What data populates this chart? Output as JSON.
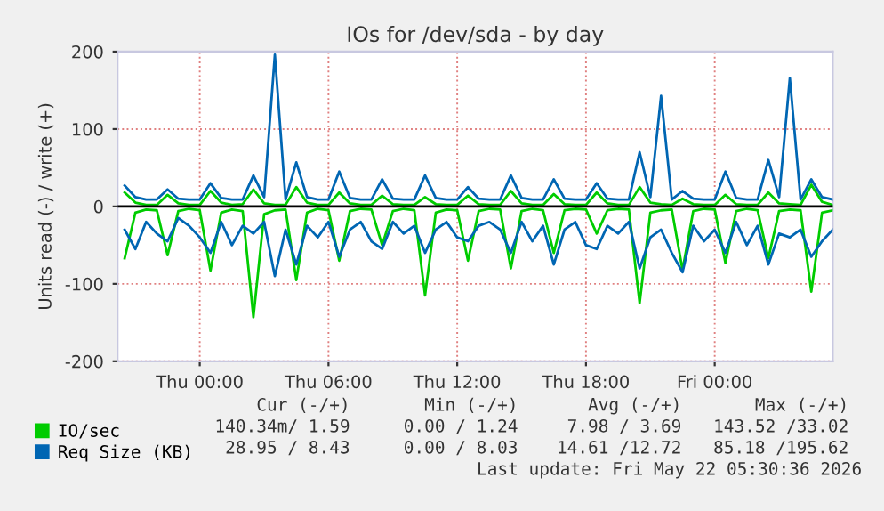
{
  "chart_data": {
    "type": "line",
    "title": "IOs for /dev/sda - by day",
    "ylabel": "Units read (-) / write (+)",
    "categories": [
      null,
      null,
      null,
      null,
      null,
      null,
      null,
      "Thu 00:00",
      null,
      null,
      null,
      null,
      null,
      null,
      null,
      null,
      null,
      null,
      null,
      "Thu 06:00",
      null,
      null,
      null,
      null,
      null,
      null,
      null,
      null,
      null,
      null,
      null,
      "Thu 12:00",
      null,
      null,
      null,
      null,
      null,
      null,
      null,
      null,
      null,
      null,
      null,
      "Thu 18:00",
      null,
      null,
      null,
      null,
      null,
      null,
      null,
      null,
      null,
      null,
      null,
      "Fri 00:00",
      null,
      null,
      null,
      null,
      null,
      null,
      null,
      null,
      null,
      null,
      null
    ],
    "ylim": [
      -200,
      200
    ],
    "yticks": [
      -200,
      -100,
      0,
      100,
      200
    ],
    "grid": true,
    "legend": "bottom",
    "line_style": "solid",
    "marker": "none",
    "ref_lines": [
      {
        "axis": "y",
        "value": 0,
        "color": "#000000"
      }
    ],
    "series": [
      {
        "name": "IO/sec",
        "color": "#00cc00",
        "values": [
          18,
          5,
          2,
          2,
          15,
          4,
          2,
          2,
          20,
          5,
          2,
          3,
          22,
          4,
          2,
          2,
          25,
          5,
          2,
          2,
          18,
          4,
          2,
          2,
          14,
          3,
          2,
          2,
          12,
          3,
          2,
          2,
          14,
          3,
          2,
          2,
          20,
          4,
          2,
          2,
          16,
          3,
          2,
          2,
          18,
          4,
          2,
          2,
          25,
          5,
          3,
          2,
          10,
          3,
          2,
          2,
          15,
          3,
          2,
          2,
          18,
          4,
          3,
          2,
          28,
          6,
          2
        ]
      },
      {
        "color": "#00cc00",
        "values": [
          -67,
          -8,
          -4,
          -5,
          -63,
          -6,
          -3,
          -5,
          -83,
          -8,
          -4,
          -6,
          -143,
          -10,
          -5,
          -4,
          -95,
          -8,
          -3,
          -5,
          -70,
          -6,
          -3,
          -4,
          -50,
          -6,
          -3,
          -5,
          -115,
          -8,
          -4,
          -5,
          -70,
          -6,
          -3,
          -4,
          -80,
          -6,
          -3,
          -5,
          -60,
          -5,
          -3,
          -4,
          -35,
          -5,
          -3,
          -4,
          -125,
          -8,
          -5,
          -4,
          -82,
          -6,
          -3,
          -4,
          -73,
          -6,
          -3,
          -5,
          -67,
          -6,
          -4,
          -5,
          -110,
          -8,
          -5
        ]
      },
      {
        "name": "Req Size (KB)",
        "color": "#0066b3",
        "values": [
          27,
          12,
          9,
          9,
          22,
          10,
          9,
          9,
          30,
          11,
          9,
          9,
          40,
          12,
          196,
          9,
          57,
          12,
          9,
          9,
          45,
          11,
          9,
          9,
          35,
          10,
          9,
          9,
          40,
          11,
          9,
          9,
          25,
          10,
          9,
          9,
          40,
          11,
          9,
          9,
          35,
          10,
          9,
          9,
          30,
          10,
          9,
          9,
          70,
          12,
          143,
          9,
          20,
          10,
          9,
          9,
          45,
          11,
          9,
          9,
          60,
          12,
          166,
          9,
          35,
          12,
          9
        ]
      },
      {
        "color": "#0066b3",
        "values": [
          -30,
          -55,
          -20,
          -35,
          -45,
          -15,
          -25,
          -40,
          -60,
          -20,
          -50,
          -25,
          -35,
          -20,
          -90,
          -30,
          -75,
          -25,
          -40,
          -20,
          -65,
          -30,
          -20,
          -45,
          -55,
          -20,
          -35,
          -25,
          -60,
          -30,
          -20,
          -40,
          -45,
          -25,
          -20,
          -30,
          -60,
          -20,
          -45,
          -25,
          -75,
          -30,
          -20,
          -50,
          -55,
          -25,
          -35,
          -20,
          -80,
          -40,
          -30,
          -60,
          -85,
          -25,
          -45,
          -30,
          -60,
          -20,
          -50,
          -25,
          -75,
          -35,
          -40,
          -30,
          -65,
          -45,
          -30
        ]
      }
    ],
    "annotations": [
      "Cur (-/+)",
      "Min (-/+)",
      "Avg (-/+)",
      "Max (-/+)",
      "140.34m/ 1.59",
      "0.00 / 1.24",
      "7.98 / 3.69",
      "143.52 /33.02",
      "28.95 / 8.43",
      "0.00 / 8.03",
      "14.61 /12.72",
      "85.18 /195.62",
      "Last update: Fri May 22 05:30:36 2026"
    ]
  }
}
